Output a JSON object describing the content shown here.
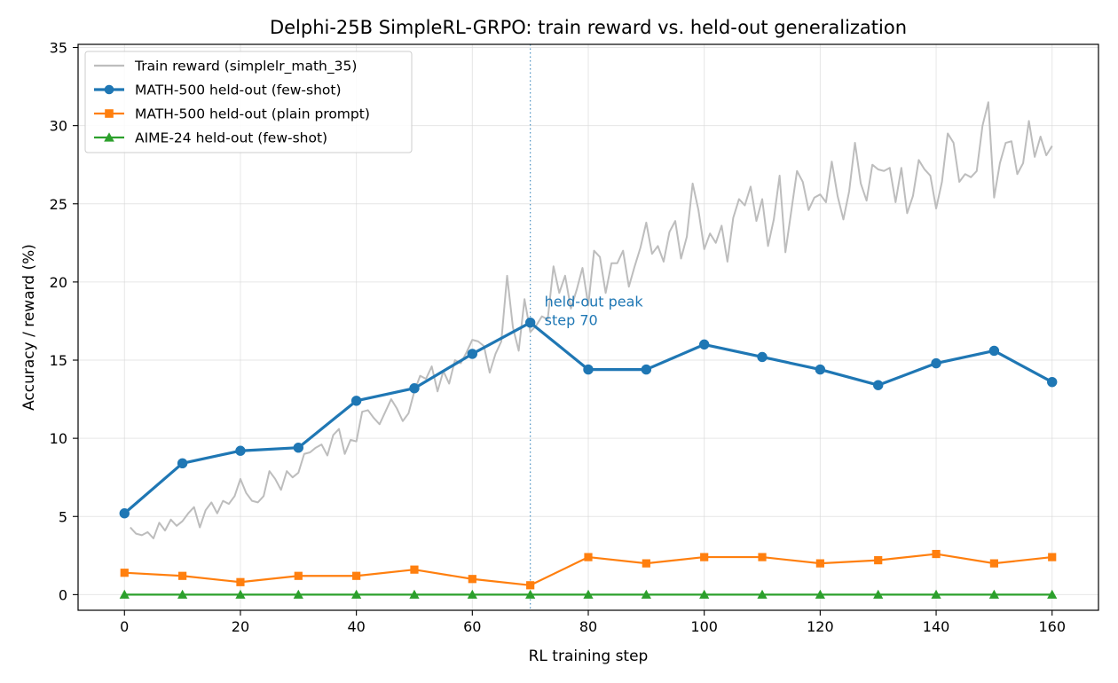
{
  "chart_data": {
    "type": "line",
    "title": "Delphi-25B SimpleRL-GRPO: train reward vs. held-out generalization",
    "xlabel": "RL training step",
    "ylabel": "Accuracy / reward (%)",
    "xlim": [
      -8,
      168
    ],
    "ylim": [
      -1,
      35.2
    ],
    "xticks": [
      0,
      20,
      40,
      60,
      80,
      100,
      120,
      140,
      160
    ],
    "yticks": [
      0,
      5,
      10,
      15,
      20,
      25,
      30,
      35
    ],
    "grid": true,
    "legend_position": "top-left",
    "series": [
      {
        "name": "Train reward (simplelr_math_35)",
        "color": "#bdbdbd",
        "marker": "none",
        "x": [
          1,
          2,
          3,
          4,
          5,
          6,
          7,
          8,
          9,
          10,
          11,
          12,
          13,
          14,
          15,
          16,
          17,
          18,
          19,
          20,
          21,
          22,
          23,
          24,
          25,
          26,
          27,
          28,
          29,
          30,
          31,
          32,
          33,
          34,
          35,
          36,
          37,
          38,
          39,
          40,
          41,
          42,
          43,
          44,
          45,
          46,
          47,
          48,
          49,
          50,
          51,
          52,
          53,
          54,
          55,
          56,
          57,
          58,
          59,
          60,
          61,
          62,
          63,
          64,
          65,
          66,
          67,
          68,
          69,
          70,
          71,
          72,
          73,
          74,
          75,
          76,
          77,
          78,
          79,
          80,
          81,
          82,
          83,
          84,
          85,
          86,
          87,
          88,
          89,
          90,
          91,
          92,
          93,
          94,
          95,
          96,
          97,
          98,
          99,
          100,
          101,
          102,
          103,
          104,
          105,
          106,
          107,
          108,
          109,
          110,
          111,
          112,
          113,
          114,
          115,
          116,
          117,
          118,
          119,
          120,
          121,
          122,
          123,
          124,
          125,
          126,
          127,
          128,
          129,
          130,
          131,
          132,
          133,
          134,
          135,
          136,
          137,
          138,
          139,
          140,
          141,
          142,
          143,
          144,
          145,
          146,
          147,
          148,
          149,
          150,
          151,
          152,
          153,
          154,
          155,
          156,
          157,
          158,
          159,
          160
        ],
        "values": [
          4.3,
          3.9,
          3.8,
          4.0,
          3.6,
          4.6,
          4.1,
          4.8,
          4.4,
          4.7,
          5.2,
          5.6,
          4.3,
          5.4,
          5.9,
          5.2,
          6.0,
          5.8,
          6.3,
          7.4,
          6.5,
          6.0,
          5.9,
          6.3,
          7.9,
          7.4,
          6.7,
          7.9,
          7.5,
          7.8,
          9.0,
          9.1,
          9.4,
          9.6,
          8.9,
          10.2,
          10.6,
          9.0,
          9.9,
          9.8,
          11.7,
          11.8,
          11.3,
          10.9,
          11.7,
          12.5,
          11.9,
          11.1,
          11.6,
          13.0,
          14.0,
          13.8,
          14.6,
          13.0,
          14.3,
          13.5,
          15.0,
          14.8,
          15.5,
          16.3,
          16.2,
          15.9,
          14.2,
          15.4,
          16.2,
          20.4,
          17.1,
          15.6,
          18.9,
          16.8,
          17.2,
          17.8,
          17.6,
          21.0,
          19.3,
          20.4,
          18.3,
          19.5,
          20.9,
          18.5,
          22.0,
          21.6,
          19.3,
          21.2,
          21.2,
          22.0,
          19.7,
          21.0,
          22.2,
          23.8,
          21.8,
          22.3,
          21.3,
          23.2,
          23.9,
          21.5,
          22.9,
          26.3,
          24.6,
          22.1,
          23.1,
          22.5,
          23.6,
          21.3,
          24.1,
          25.3,
          24.9,
          26.1,
          23.9,
          25.3,
          22.3,
          24.0,
          26.8,
          21.9,
          24.5,
          27.1,
          26.4,
          24.6,
          25.4,
          25.6,
          25.1,
          27.7,
          25.5,
          24.0,
          25.8,
          28.9,
          26.3,
          25.2,
          27.5,
          27.2,
          27.1,
          27.3,
          25.1,
          27.3,
          24.4,
          25.5,
          27.8,
          27.2,
          26.8,
          24.7,
          26.4,
          29.5,
          28.9,
          26.4,
          26.9,
          26.7,
          27.1,
          30.0,
          31.5,
          25.4,
          27.6,
          28.9,
          29.0,
          26.9,
          27.6,
          30.3,
          28.0,
          29.3,
          28.1,
          28.7
        ]
      },
      {
        "name": "MATH-500 held-out (few-shot)",
        "color": "#1f77b4",
        "marker": "circle",
        "x": [
          0,
          10,
          20,
          30,
          40,
          50,
          60,
          70,
          80,
          90,
          100,
          110,
          120,
          130,
          140,
          150,
          160
        ],
        "values": [
          5.2,
          8.4,
          9.2,
          9.4,
          12.4,
          13.2,
          15.4,
          17.4,
          14.4,
          14.4,
          16.0,
          15.2,
          14.4,
          13.4,
          14.8,
          15.6,
          13.6
        ]
      },
      {
        "name": "MATH-500 held-out (plain prompt)",
        "color": "#ff7f0e",
        "marker": "square",
        "x": [
          0,
          10,
          20,
          30,
          40,
          50,
          60,
          70,
          80,
          90,
          100,
          110,
          120,
          130,
          140,
          150,
          160
        ],
        "values": [
          1.4,
          1.2,
          0.8,
          1.2,
          1.2,
          1.6,
          1.0,
          0.6,
          2.4,
          2.0,
          2.4,
          2.4,
          2.0,
          2.2,
          2.6,
          2.0,
          2.4
        ]
      },
      {
        "name": "AIME-24 held-out (few-shot)",
        "color": "#2ca02c",
        "marker": "triangle",
        "x": [
          0,
          10,
          20,
          30,
          40,
          50,
          60,
          70,
          80,
          90,
          100,
          110,
          120,
          130,
          140,
          150,
          160
        ],
        "values": [
          0,
          0,
          0,
          0,
          0,
          0,
          0,
          0,
          0,
          0,
          0,
          0,
          0,
          0,
          0,
          0,
          0
        ]
      }
    ],
    "annotations": [
      {
        "text_lines": [
          "held-out peak",
          "step 70"
        ],
        "x": 70,
        "y": 17.4,
        "color": "#1f77b4"
      }
    ],
    "vline": {
      "x": 70,
      "color": "#1f77b4",
      "style": "dotted"
    }
  }
}
